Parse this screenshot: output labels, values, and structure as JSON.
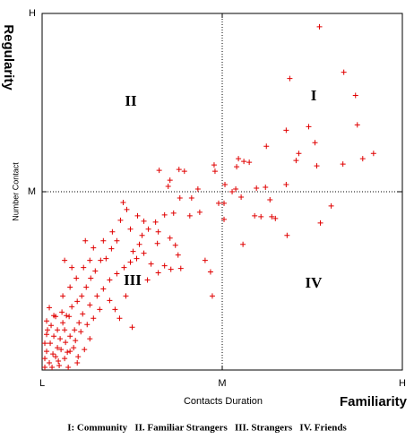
{
  "chart_data": {
    "type": "scatter",
    "xlabel": "Contacts Duration",
    "xlabel_bold": "Familiarity",
    "ylabel": "Number Contact",
    "ylabel_bold": "Regularity",
    "annotations": [
      "I",
      "II",
      "III",
      "IV"
    ],
    "caption": "I: Community   II. Familiar Strangers   III. Strangers   IV. Friends",
    "xlim": [
      0,
      400
    ],
    "ylim": [
      0,
      400
    ],
    "xticks": [
      {
        "value": 0,
        "label": "L"
      },
      {
        "value": 200,
        "label": "M"
      },
      {
        "value": 400,
        "label": "H"
      }
    ],
    "yticks": [
      {
        "value": 200,
        "label": "M"
      },
      {
        "value": 400,
        "label": "H"
      }
    ],
    "dividers": {
      "x": 200,
      "y": 200
    },
    "color": "#e00000",
    "x": [
      308,
      335,
      275,
      348,
      350,
      271,
      296,
      303,
      249,
      285,
      368,
      356,
      282,
      305,
      334,
      218,
      224,
      230,
      216,
      191,
      192,
      158,
      152,
      130,
      142,
      140,
      203,
      215,
      238,
      248,
      271,
      211,
      196,
      202,
      221,
      253,
      236,
      243,
      255,
      259,
      321,
      309,
      202,
      272,
      223,
      173,
      166,
      153,
      164,
      146,
      175,
      136,
      126,
      129,
      113,
      106,
      90,
      94,
      87,
      98,
      111,
      118,
      142,
      148,
      128,
      108,
      101,
      83,
      77,
      71,
      65,
      59,
      54,
      49,
      44,
      39,
      33,
      27,
      23,
      17,
      13,
      9,
      5,
      3,
      8,
      15,
      21,
      26,
      31,
      36,
      41,
      45,
      53,
      61,
      68,
      75,
      83,
      91,
      98,
      105,
      113,
      121,
      129,
      136,
      143,
      151,
      117,
      75,
      81,
      86,
      64,
      57,
      50,
      43,
      37,
      31,
      25,
      19,
      11,
      3,
      5,
      13,
      23,
      31,
      38,
      46,
      53,
      33,
      25,
      48,
      57,
      68,
      78,
      187,
      189,
      154,
      100,
      181,
      39,
      47,
      53,
      29,
      17,
      93,
      5,
      10,
      15,
      8,
      20,
      12,
      25,
      30,
      35,
      3,
      18,
      28,
      40,
      6,
      22
    ],
    "y": [
      385,
      334,
      327,
      308,
      275,
      269,
      273,
      255,
      251,
      243,
      243,
      237,
      235,
      229,
      231,
      237,
      234,
      233,
      228,
      230,
      223,
      223,
      225,
      224,
      213,
      206,
      208,
      203,
      204,
      205,
      208,
      200,
      187,
      187,
      194,
      191,
      173,
      172,
      172,
      170,
      184,
      165,
      169,
      151,
      141,
      203,
      193,
      193,
      173,
      176,
      177,
      174,
      166,
      155,
      167,
      173,
      188,
      180,
      168,
      158,
      151,
      158,
      148,
      140,
      142,
      141,
      133,
      145,
      136,
      125,
      123,
      111,
      103,
      93,
      83,
      77,
      71,
      61,
      53,
      45,
      38,
      30,
      21,
      13,
      8,
      15,
      23,
      31,
      38,
      45,
      53,
      63,
      73,
      83,
      91,
      101,
      108,
      115,
      121,
      125,
      131,
      119,
      109,
      117,
      113,
      129,
      101,
      78,
      68,
      58,
      68,
      58,
      51,
      43,
      33,
      21,
      13,
      5,
      3,
      3,
      55,
      61,
      83,
      93,
      103,
      115,
      123,
      115,
      123,
      145,
      137,
      145,
      155,
      110,
      83,
      114,
      48,
      123,
      8,
      23,
      35,
      3,
      25,
      83,
      40,
      50,
      60,
      70,
      35,
      18,
      45,
      60,
      25,
      30,
      10,
      20,
      15,
      45,
      65
    ]
  }
}
